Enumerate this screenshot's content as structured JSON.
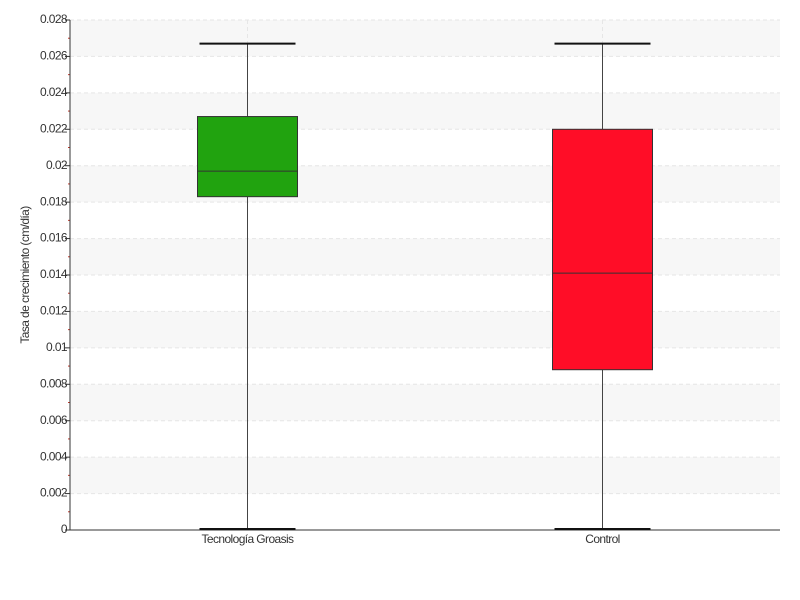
{
  "chart_data": {
    "type": "box",
    "y_label": "Tasa de crecimiento (cm/día)",
    "categories": [
      "Tecnología Groasis",
      "Control"
    ],
    "boxes": [
      {
        "min": 0,
        "q1": 0.0183,
        "median": 0.0197,
        "q3": 0.0227,
        "max": 0.0267,
        "color": "#21a30f"
      },
      {
        "min": 0,
        "q1": 0.0088,
        "median": 0.0141,
        "q3": 0.022,
        "max": 0.0267,
        "color": "#ff0d27"
      }
    ],
    "ylim": [
      0,
      0.028
    ],
    "yticks": [
      0,
      0.002,
      0.004,
      0.006,
      0.008,
      0.01,
      0.012,
      0.014,
      0.016,
      0.018,
      0.02,
      0.022,
      0.024,
      0.026,
      0.028
    ],
    "grid": true
  }
}
